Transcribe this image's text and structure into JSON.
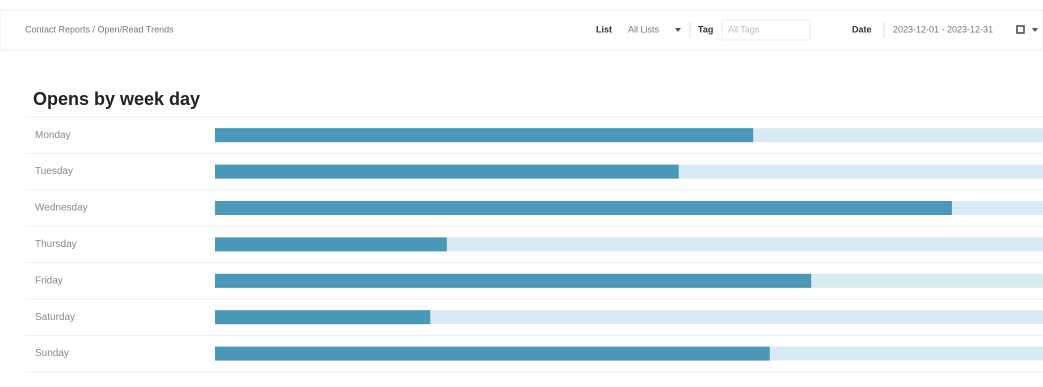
{
  "header": {
    "breadcrumb": "Contact Reports / Open/Read Trends",
    "filters": [
      {
        "label": "List",
        "value": "All Lists"
      },
      {
        "label": "Tag",
        "placeholder": "All Tags"
      },
      {
        "label": "Date",
        "value": "2023-12-01 - 2023-12-31"
      }
    ]
  },
  "chart_data": {
    "type": "bar",
    "orientation": "horizontal",
    "title": "Opens by week day",
    "categories": [
      "Monday",
      "Tuesday",
      "Wednesday",
      "Thursday",
      "Friday",
      "Saturday",
      "Sunday"
    ],
    "values": [
      65,
      56,
      89,
      28,
      72,
      26,
      67
    ],
    "xlim": [
      0,
      100
    ],
    "color": "#4b97b8",
    "track_color": "#d8eaf4"
  }
}
